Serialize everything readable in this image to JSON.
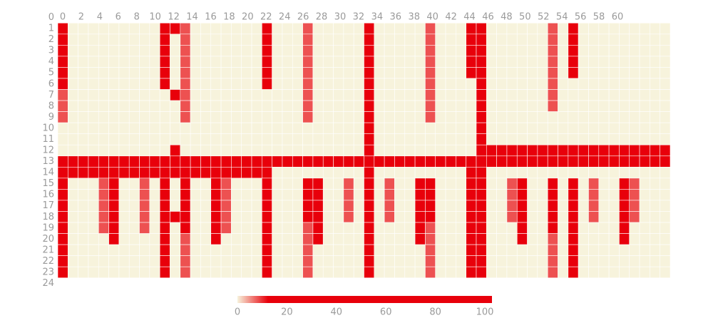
{
  "chart_data": {
    "type": "heatmap",
    "xticks": [
      0,
      2,
      4,
      6,
      8,
      10,
      12,
      14,
      16,
      18,
      20,
      22,
      24,
      26,
      28,
      30,
      32,
      34,
      36,
      38,
      40,
      42,
      44,
      46,
      48,
      50,
      52,
      54,
      56,
      58,
      60
    ],
    "yticks": [
      0,
      1,
      2,
      3,
      4,
      5,
      6,
      7,
      8,
      9,
      10,
      11,
      12,
      13,
      14,
      15,
      16,
      17,
      18,
      19,
      20,
      21,
      22,
      23,
      24
    ],
    "ylim": [
      0,
      24
    ],
    "y": [
      1,
      2,
      3,
      4,
      5,
      6,
      7,
      8,
      9,
      10,
      11,
      12,
      13,
      14,
      15,
      16,
      17,
      18,
      19,
      20,
      21,
      22,
      23
    ],
    "colorscale": [
      {
        "value": 0,
        "color": "#f7f3dc"
      },
      {
        "value": 12,
        "color": "#e8000b"
      },
      {
        "value": 100,
        "color": "#e8000b"
      }
    ],
    "colorbar_lim": [
      0,
      100
    ],
    "colorbar_ticks": [
      0,
      20,
      40,
      60,
      80,
      100
    ],
    "z": [
      [
        100,
        0,
        0,
        0,
        0,
        0,
        0,
        0,
        0,
        0,
        100,
        100,
        8,
        0,
        0,
        0,
        0,
        0,
        0,
        0,
        100,
        0,
        0,
        0,
        8,
        0,
        0,
        0,
        0,
        0,
        100,
        0,
        0,
        0,
        0,
        0,
        8,
        0,
        0,
        0,
        100,
        100,
        0,
        0,
        0,
        0,
        0,
        0,
        8,
        0,
        100,
        0,
        0,
        0,
        0,
        0,
        0,
        0,
        0,
        0
      ],
      [
        100,
        0,
        0,
        0,
        0,
        0,
        0,
        0,
        0,
        0,
        100,
        0,
        8,
        0,
        0,
        0,
        0,
        0,
        0,
        0,
        100,
        0,
        0,
        0,
        8,
        0,
        0,
        0,
        0,
        0,
        100,
        0,
        0,
        0,
        0,
        0,
        8,
        0,
        0,
        0,
        100,
        100,
        0,
        0,
        0,
        0,
        0,
        0,
        8,
        0,
        100,
        0,
        0,
        0,
        0,
        0,
        0,
        0,
        0,
        0
      ],
      [
        100,
        0,
        0,
        0,
        0,
        0,
        0,
        0,
        0,
        0,
        100,
        0,
        8,
        0,
        0,
        0,
        0,
        0,
        0,
        0,
        100,
        0,
        0,
        0,
        8,
        0,
        0,
        0,
        0,
        0,
        100,
        0,
        0,
        0,
        0,
        0,
        8,
        0,
        0,
        0,
        100,
        100,
        0,
        0,
        0,
        0,
        0,
        0,
        8,
        0,
        100,
        0,
        0,
        0,
        0,
        0,
        0,
        0,
        0,
        0
      ],
      [
        100,
        0,
        0,
        0,
        0,
        0,
        0,
        0,
        0,
        0,
        100,
        0,
        8,
        0,
        0,
        0,
        0,
        0,
        0,
        0,
        100,
        0,
        0,
        0,
        8,
        0,
        0,
        0,
        0,
        0,
        100,
        0,
        0,
        0,
        0,
        0,
        8,
        0,
        0,
        0,
        100,
        100,
        0,
        0,
        0,
        0,
        0,
        0,
        8,
        0,
        100,
        0,
        0,
        0,
        0,
        0,
        0,
        0,
        0,
        0
      ],
      [
        100,
        0,
        0,
        0,
        0,
        0,
        0,
        0,
        0,
        0,
        100,
        0,
        8,
        0,
        0,
        0,
        0,
        0,
        0,
        0,
        100,
        0,
        0,
        0,
        8,
        0,
        0,
        0,
        0,
        0,
        100,
        0,
        0,
        0,
        0,
        0,
        8,
        0,
        0,
        0,
        100,
        100,
        0,
        0,
        0,
        0,
        0,
        0,
        8,
        0,
        100,
        0,
        0,
        0,
        0,
        0,
        0,
        0,
        0,
        0
      ],
      [
        100,
        0,
        0,
        0,
        0,
        0,
        0,
        0,
        0,
        0,
        100,
        0,
        8,
        0,
        0,
        0,
        0,
        0,
        0,
        0,
        100,
        0,
        0,
        0,
        8,
        0,
        0,
        0,
        0,
        0,
        100,
        0,
        0,
        0,
        0,
        0,
        8,
        0,
        0,
        0,
        0,
        100,
        0,
        0,
        0,
        0,
        0,
        0,
        8,
        0,
        0,
        0,
        0,
        0,
        0,
        0,
        0,
        0,
        0,
        0
      ],
      [
        8,
        0,
        0,
        0,
        0,
        0,
        0,
        0,
        0,
        0,
        0,
        100,
        8,
        0,
        0,
        0,
        0,
        0,
        0,
        0,
        0,
        0,
        0,
        0,
        8,
        0,
        0,
        0,
        0,
        0,
        100,
        0,
        0,
        0,
        0,
        0,
        8,
        0,
        0,
        0,
        0,
        100,
        0,
        0,
        0,
        0,
        0,
        0,
        8,
        0,
        0,
        0,
        0,
        0,
        0,
        0,
        0,
        0,
        0,
        0
      ],
      [
        8,
        0,
        0,
        0,
        0,
        0,
        0,
        0,
        0,
        0,
        0,
        0,
        8,
        0,
        0,
        0,
        0,
        0,
        0,
        0,
        0,
        0,
        0,
        0,
        8,
        0,
        0,
        0,
        0,
        0,
        100,
        0,
        0,
        0,
        0,
        0,
        8,
        0,
        0,
        0,
        0,
        100,
        0,
        0,
        0,
        0,
        0,
        0,
        8,
        0,
        0,
        0,
        0,
        0,
        0,
        0,
        0,
        0,
        0,
        0
      ],
      [
        8,
        0,
        0,
        0,
        0,
        0,
        0,
        0,
        0,
        0,
        0,
        0,
        8,
        0,
        0,
        0,
        0,
        0,
        0,
        0,
        0,
        0,
        0,
        0,
        8,
        0,
        0,
        0,
        0,
        0,
        100,
        0,
        0,
        0,
        0,
        0,
        8,
        0,
        0,
        0,
        0,
        100,
        0,
        0,
        0,
        0,
        0,
        0,
        0,
        0,
        0,
        0,
        0,
        0,
        0,
        0,
        0,
        0,
        0,
        0
      ],
      [
        0,
        0,
        0,
        0,
        0,
        0,
        0,
        0,
        0,
        0,
        0,
        0,
        0,
        0,
        0,
        0,
        0,
        0,
        0,
        0,
        0,
        0,
        0,
        0,
        0,
        0,
        0,
        0,
        0,
        0,
        100,
        0,
        0,
        0,
        0,
        0,
        0,
        0,
        0,
        0,
        0,
        100,
        0,
        0,
        0,
        0,
        0,
        0,
        0,
        0,
        0,
        0,
        0,
        0,
        0,
        0,
        0,
        0,
        0,
        0
      ],
      [
        0,
        0,
        0,
        0,
        0,
        0,
        0,
        0,
        0,
        0,
        0,
        0,
        0,
        0,
        0,
        0,
        0,
        0,
        0,
        0,
        0,
        0,
        0,
        0,
        0,
        0,
        0,
        0,
        0,
        0,
        100,
        0,
        0,
        0,
        0,
        0,
        0,
        0,
        0,
        0,
        0,
        100,
        0,
        0,
        0,
        0,
        0,
        0,
        0,
        0,
        0,
        0,
        0,
        0,
        0,
        0,
        0,
        0,
        0,
        0
      ],
      [
        0,
        0,
        0,
        0,
        0,
        0,
        0,
        0,
        0,
        0,
        0,
        100,
        0,
        0,
        0,
        0,
        0,
        0,
        0,
        0,
        0,
        0,
        0,
        0,
        0,
        0,
        0,
        0,
        0,
        0,
        100,
        0,
        0,
        0,
        0,
        0,
        0,
        0,
        0,
        0,
        0,
        100,
        100,
        100,
        100,
        100,
        100,
        100,
        100,
        100,
        100,
        100,
        100,
        100,
        100,
        100,
        100,
        100,
        100,
        100
      ],
      [
        100,
        100,
        100,
        100,
        100,
        100,
        100,
        100,
        100,
        100,
        100,
        100,
        100,
        100,
        100,
        100,
        100,
        100,
        100,
        100,
        100,
        100,
        100,
        100,
        100,
        100,
        100,
        100,
        100,
        100,
        100,
        100,
        100,
        100,
        100,
        100,
        100,
        100,
        100,
        100,
        100,
        100,
        100,
        100,
        100,
        100,
        100,
        100,
        100,
        100,
        100,
        100,
        100,
        100,
        100,
        100,
        100,
        100,
        100,
        100
      ],
      [
        100,
        100,
        100,
        100,
        100,
        100,
        100,
        100,
        100,
        100,
        100,
        100,
        100,
        100,
        100,
        100,
        100,
        100,
        100,
        100,
        100,
        0,
        0,
        0,
        0,
        0,
        0,
        0,
        0,
        0,
        100,
        0,
        0,
        0,
        0,
        0,
        0,
        0,
        0,
        0,
        100,
        100,
        0,
        0,
        0,
        0,
        0,
        0,
        0,
        0,
        0,
        0,
        0,
        0,
        0,
        0,
        0,
        0,
        0,
        0
      ],
      [
        100,
        0,
        0,
        0,
        8,
        100,
        0,
        0,
        8,
        0,
        100,
        0,
        100,
        0,
        0,
        100,
        8,
        0,
        0,
        0,
        100,
        0,
        0,
        0,
        100,
        100,
        0,
        0,
        8,
        0,
        100,
        0,
        8,
        0,
        0,
        100,
        100,
        0,
        0,
        0,
        100,
        100,
        0,
        0,
        8,
        100,
        0,
        0,
        100,
        0,
        100,
        0,
        8,
        0,
        0,
        100,
        8,
        0,
        0,
        0
      ],
      [
        100,
        0,
        0,
        0,
        8,
        100,
        0,
        0,
        8,
        0,
        100,
        0,
        100,
        0,
        0,
        100,
        8,
        0,
        0,
        0,
        100,
        0,
        0,
        0,
        100,
        100,
        0,
        0,
        8,
        0,
        100,
        0,
        8,
        0,
        0,
        100,
        100,
        0,
        0,
        0,
        100,
        100,
        0,
        0,
        8,
        100,
        0,
        0,
        100,
        0,
        100,
        0,
        8,
        0,
        0,
        100,
        8,
        0,
        0,
        0
      ],
      [
        100,
        0,
        0,
        0,
        8,
        100,
        0,
        0,
        8,
        0,
        100,
        0,
        100,
        0,
        0,
        100,
        8,
        0,
        0,
        0,
        100,
        0,
        0,
        0,
        100,
        100,
        0,
        0,
        8,
        0,
        100,
        0,
        8,
        0,
        0,
        100,
        100,
        0,
        0,
        0,
        100,
        100,
        0,
        0,
        8,
        100,
        0,
        0,
        100,
        0,
        100,
        0,
        8,
        0,
        0,
        100,
        8,
        0,
        0,
        0
      ],
      [
        100,
        0,
        0,
        0,
        8,
        100,
        0,
        0,
        8,
        0,
        100,
        100,
        100,
        0,
        0,
        100,
        8,
        0,
        0,
        0,
        100,
        0,
        0,
        0,
        100,
        100,
        0,
        0,
        8,
        0,
        100,
        0,
        8,
        0,
        0,
        100,
        100,
        0,
        0,
        0,
        100,
        100,
        0,
        0,
        8,
        100,
        0,
        0,
        100,
        0,
        100,
        0,
        8,
        0,
        0,
        100,
        8,
        0,
        0,
        0
      ],
      [
        100,
        0,
        0,
        0,
        8,
        100,
        0,
        0,
        8,
        0,
        100,
        0,
        100,
        0,
        0,
        100,
        8,
        0,
        0,
        0,
        100,
        0,
        0,
        0,
        8,
        100,
        0,
        0,
        0,
        0,
        100,
        0,
        0,
        0,
        0,
        100,
        8,
        0,
        0,
        0,
        100,
        100,
        0,
        0,
        0,
        100,
        0,
        0,
        100,
        0,
        100,
        0,
        0,
        0,
        0,
        100,
        0,
        0,
        0,
        0
      ],
      [
        100,
        0,
        0,
        0,
        0,
        100,
        0,
        0,
        0,
        0,
        100,
        0,
        8,
        0,
        0,
        100,
        0,
        0,
        0,
        0,
        100,
        0,
        0,
        0,
        8,
        100,
        0,
        0,
        0,
        0,
        100,
        0,
        0,
        0,
        0,
        100,
        8,
        0,
        0,
        0,
        100,
        100,
        0,
        0,
        0,
        100,
        0,
        0,
        8,
        0,
        100,
        0,
        0,
        0,
        0,
        100,
        0,
        0,
        0,
        0
      ],
      [
        100,
        0,
        0,
        0,
        0,
        0,
        0,
        0,
        0,
        0,
        100,
        0,
        8,
        0,
        0,
        0,
        0,
        0,
        0,
        0,
        100,
        0,
        0,
        0,
        8,
        0,
        0,
        0,
        0,
        0,
        100,
        0,
        0,
        0,
        0,
        0,
        8,
        0,
        0,
        0,
        100,
        100,
        0,
        0,
        0,
        0,
        0,
        0,
        8,
        0,
        100,
        0,
        0,
        0,
        0,
        0,
        0,
        0,
        0,
        0
      ],
      [
        100,
        0,
        0,
        0,
        0,
        0,
        0,
        0,
        0,
        0,
        100,
        0,
        8,
        0,
        0,
        0,
        0,
        0,
        0,
        0,
        100,
        0,
        0,
        0,
        8,
        0,
        0,
        0,
        0,
        0,
        100,
        0,
        0,
        0,
        0,
        0,
        8,
        0,
        0,
        0,
        100,
        100,
        0,
        0,
        0,
        0,
        0,
        0,
        8,
        0,
        100,
        0,
        0,
        0,
        0,
        0,
        0,
        0,
        0,
        0
      ],
      [
        100,
        0,
        0,
        0,
        0,
        0,
        0,
        0,
        0,
        0,
        100,
        0,
        8,
        0,
        0,
        0,
        0,
        0,
        0,
        0,
        100,
        0,
        0,
        0,
        8,
        0,
        0,
        0,
        0,
        0,
        100,
        0,
        0,
        0,
        0,
        0,
        8,
        0,
        0,
        0,
        100,
        100,
        0,
        0,
        0,
        0,
        0,
        0,
        8,
        0,
        100,
        0,
        0,
        0,
        0,
        0,
        0,
        0,
        0,
        0
      ]
    ]
  }
}
